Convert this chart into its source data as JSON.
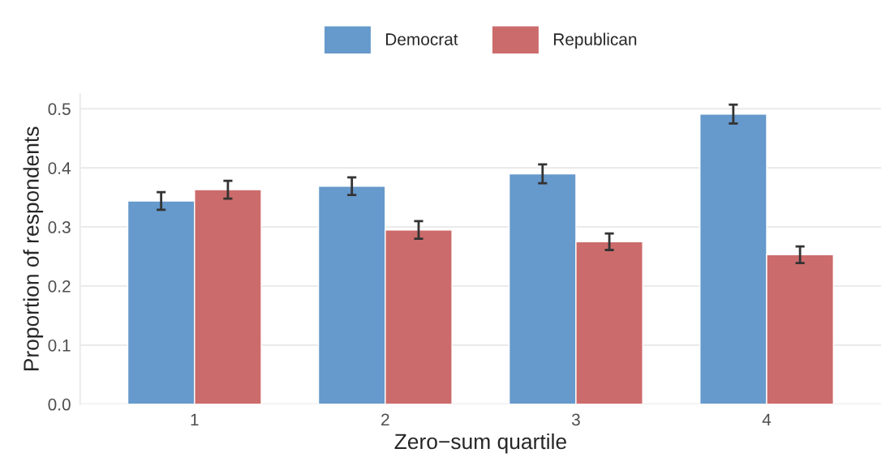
{
  "chart_data": {
    "type": "bar",
    "xlabel": "Zero−sum quartile",
    "ylabel": "Proportion of respondents",
    "categories": [
      "1",
      "2",
      "3",
      "4"
    ],
    "series": [
      {
        "name": "Democrat",
        "color": "#6699cc",
        "values": [
          0.344,
          0.369,
          0.39,
          0.491
        ],
        "errors": [
          0.015,
          0.015,
          0.016,
          0.016
        ]
      },
      {
        "name": "Republican",
        "color": "#cc6b6b",
        "values": [
          0.363,
          0.295,
          0.275,
          0.253
        ],
        "errors": [
          0.015,
          0.015,
          0.014,
          0.014
        ]
      }
    ],
    "ylim": [
      0,
      0.525
    ],
    "yticks": [
      {
        "value": 0,
        "label": "0.0"
      },
      0.1,
      0.2,
      0.3,
      0.4,
      0.5
    ],
    "grid": "y",
    "legend": "top"
  }
}
